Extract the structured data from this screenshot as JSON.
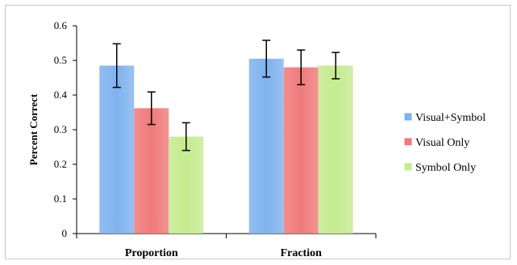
{
  "chart_data": {
    "type": "bar",
    "title": "",
    "xlabel": "",
    "ylabel": "Percent Correct",
    "ylim": [
      0,
      0.6
    ],
    "yticks": [
      "0",
      "0.1",
      "0.2",
      "0.3",
      "0.4",
      "0.5",
      "0.6"
    ],
    "categories": [
      "Proportion",
      "Fraction"
    ],
    "grid": false,
    "legend_position": "right",
    "series": [
      {
        "name": "Visual+Symbol",
        "color": "#7fb2ee",
        "values": [
          0.485,
          0.505
        ],
        "error": [
          0.063,
          0.053
        ]
      },
      {
        "name": "Visual Only",
        "color": "#f07a7a",
        "values": [
          0.362,
          0.48
        ],
        "error": [
          0.047,
          0.05
        ]
      },
      {
        "name": "Symbol Only",
        "color": "#c5eb8f",
        "values": [
          0.28,
          0.485
        ],
        "error": [
          0.04,
          0.038
        ]
      }
    ]
  }
}
